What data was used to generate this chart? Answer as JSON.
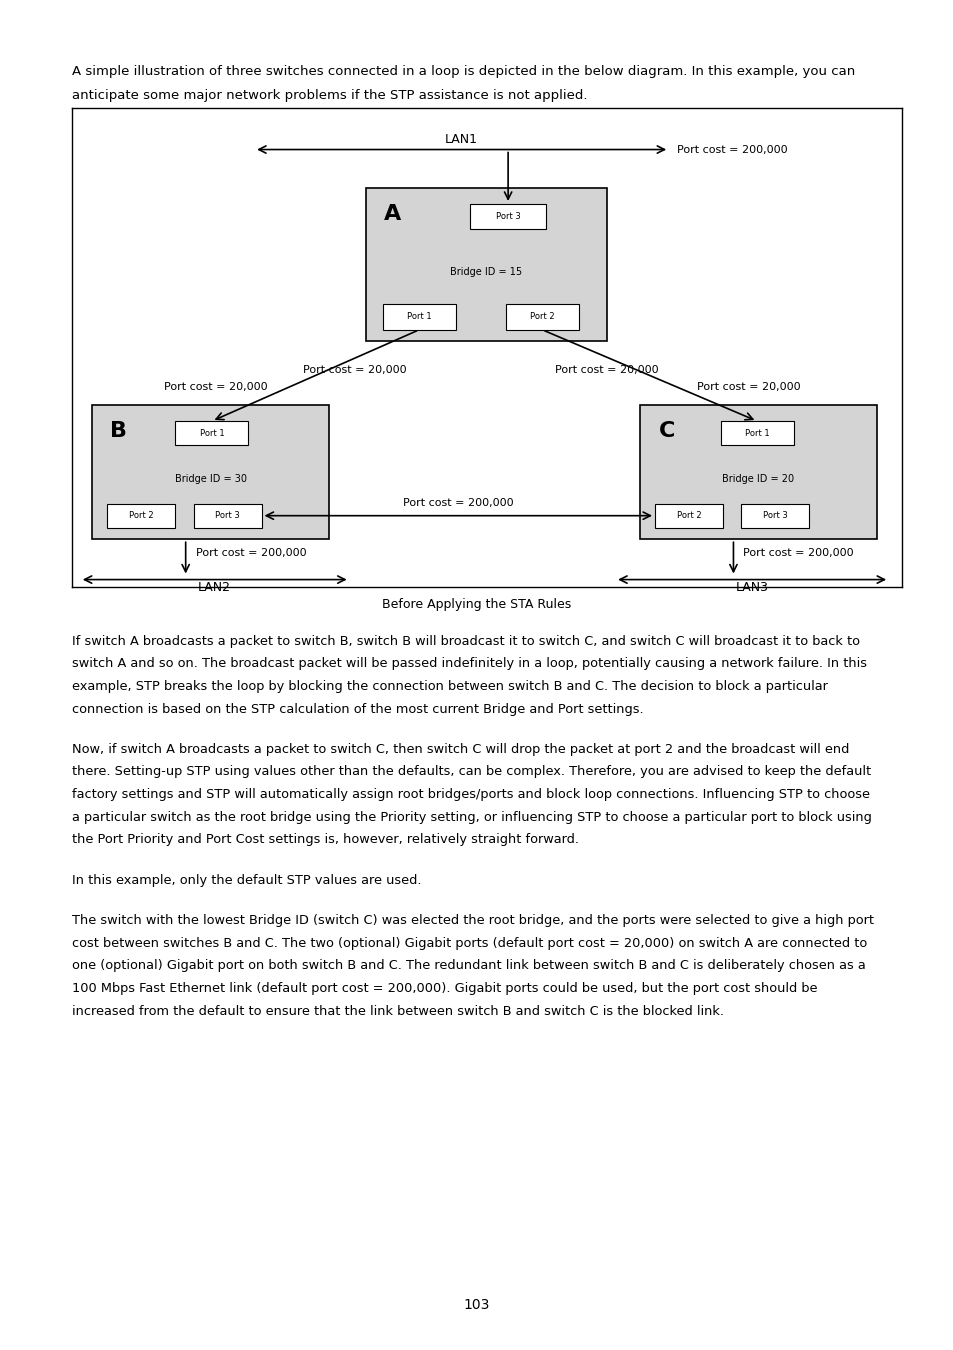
{
  "page_bg": "#ffffff",
  "diagram_caption": "Before Applying the STA Rules",
  "page_num": "103",
  "switch_fill": "#d4d4d4",
  "switch_edge": "#000000",
  "port_fill": "#ffffff",
  "port_edge": "#000000",
  "intro_line1": "A simple illustration of three switches connected in a loop is depicted in the below diagram. In this example, you can",
  "intro_line2": "anticipate some major network problems if the STP assistance is not applied.",
  "para1_lines": [
    "If switch A broadcasts a packet to switch B, switch B will broadcast it to switch C, and switch C will broadcast it to back to",
    "switch A and so on. The broadcast packet will be passed indefinitely in a loop, potentially causing a network failure. In this",
    "example, STP breaks the loop by blocking the connection between switch B and C. The decision to block a particular",
    "connection is based on the STP calculation of the most current Bridge and Port settings."
  ],
  "para2_lines": [
    "Now, if switch A broadcasts a packet to switch C, then switch C will drop the packet at port 2 and the broadcast will end",
    "there. Setting-up STP using values other than the defaults, can be complex. Therefore, you are advised to keep the default",
    "factory settings and STP will automatically assign root bridges/ports and block loop connections. Influencing STP to choose",
    "a particular switch as the root bridge using the Priority setting, or influencing STP to choose a particular port to block using",
    "the Port Priority and Port Cost settings is, however, relatively straight forward."
  ],
  "para3_lines": [
    "In this example, only the default STP values are used."
  ],
  "para4_lines": [
    "The switch with the lowest Bridge ID (switch C) was elected the root bridge, and the ports were selected to give a high port",
    "cost between switches B and C. The two (optional) Gigabit ports (default port cost = 20,000) on switch A are connected to",
    "one (optional) Gigabit port on both switch B and C. The redundant link between switch B and C is deliberately chosen as a",
    "100 Mbps Fast Ethernet link (default port cost = 200,000). Gigabit ports could be used, but the port cost should be",
    "increased from the default to ensure that the link between switch B and switch C is the blocked link."
  ]
}
